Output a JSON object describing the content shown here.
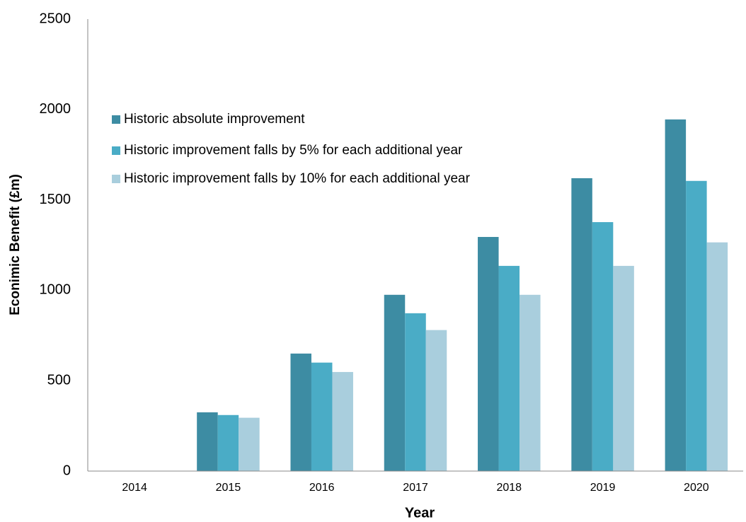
{
  "chart_data": {
    "type": "bar",
    "xlabel": "Year",
    "ylabel": "Econimic Benefit (£m)",
    "categories": [
      "2014",
      "2015",
      "2016",
      "2017",
      "2018",
      "2019",
      "2020"
    ],
    "series": [
      {
        "name": "Historic absolute improvement",
        "color": "#3d8ca3",
        "values": [
          0,
          325,
          650,
          975,
          1295,
          1620,
          1945
        ]
      },
      {
        "name": "Historic improvement falls by 5% for each additional year",
        "color": "#4aacc6",
        "values": [
          0,
          310,
          600,
          873,
          1135,
          1377,
          1605
        ]
      },
      {
        "name": "Historic improvement falls by 10% for each additional year",
        "color": "#a9cedd",
        "values": [
          0,
          295,
          548,
          780,
          975,
          1135,
          1265
        ]
      }
    ],
    "ylim": [
      0,
      2500
    ],
    "yticks": [
      0,
      500,
      1000,
      1500,
      2000,
      2500
    ],
    "grid": false,
    "legend": "upper left"
  }
}
